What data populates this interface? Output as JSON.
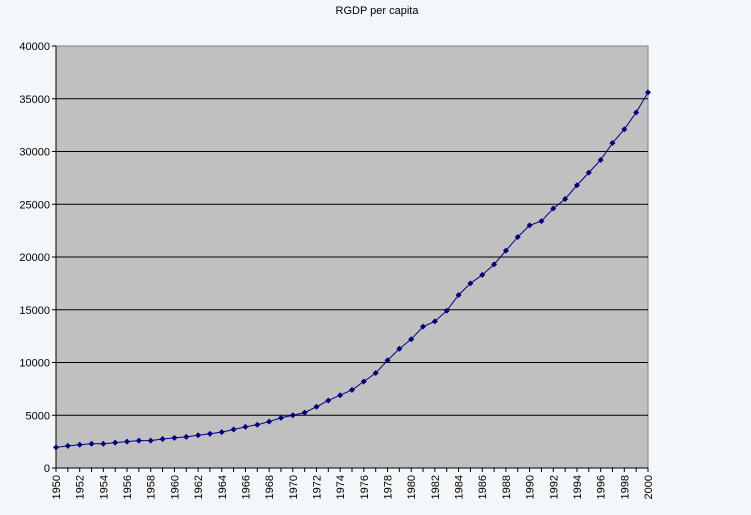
{
  "chart_data": {
    "type": "line",
    "title": "RGDP per capita",
    "xlabel": "",
    "ylabel": "",
    "ylim": [
      0,
      40000
    ],
    "yticks": [
      0,
      5000,
      10000,
      15000,
      20000,
      25000,
      30000,
      35000,
      40000
    ],
    "xticks": [
      1950,
      1952,
      1954,
      1956,
      1958,
      1960,
      1962,
      1964,
      1966,
      1968,
      1970,
      1972,
      1974,
      1976,
      1978,
      1980,
      1982,
      1984,
      1986,
      1988,
      1990,
      1992,
      1994,
      1996,
      1998,
      2000
    ],
    "grid": true,
    "legend": "none",
    "plot_background": "#c0c0c0",
    "line_color": "#000080",
    "x": [
      1950,
      1951,
      1952,
      1953,
      1954,
      1955,
      1956,
      1957,
      1958,
      1959,
      1960,
      1961,
      1962,
      1963,
      1964,
      1965,
      1966,
      1967,
      1968,
      1969,
      1970,
      1971,
      1972,
      1973,
      1974,
      1975,
      1976,
      1977,
      1978,
      1979,
      1980,
      1981,
      1982,
      1983,
      1984,
      1985,
      1986,
      1987,
      1988,
      1989,
      1990,
      1991,
      1992,
      1993,
      1994,
      1995,
      1996,
      1997,
      1998,
      1999,
      2000
    ],
    "series": [
      {
        "values": [
          1950,
          2100,
          2200,
          2300,
          2300,
          2400,
          2500,
          2600,
          2600,
          2750,
          2850,
          2950,
          3100,
          3250,
          3400,
          3650,
          3900,
          4100,
          4400,
          4750,
          5000,
          5250,
          5800,
          6400,
          6900,
          7400,
          8200,
          9000,
          10200,
          11300,
          12200,
          13400,
          13900,
          14900,
          16400,
          17500,
          18300,
          19300,
          20600,
          21900,
          23000,
          23400,
          24600,
          25500,
          26800,
          28000,
          29200,
          30800,
          32100,
          33700,
          35600
        ]
      }
    ]
  }
}
